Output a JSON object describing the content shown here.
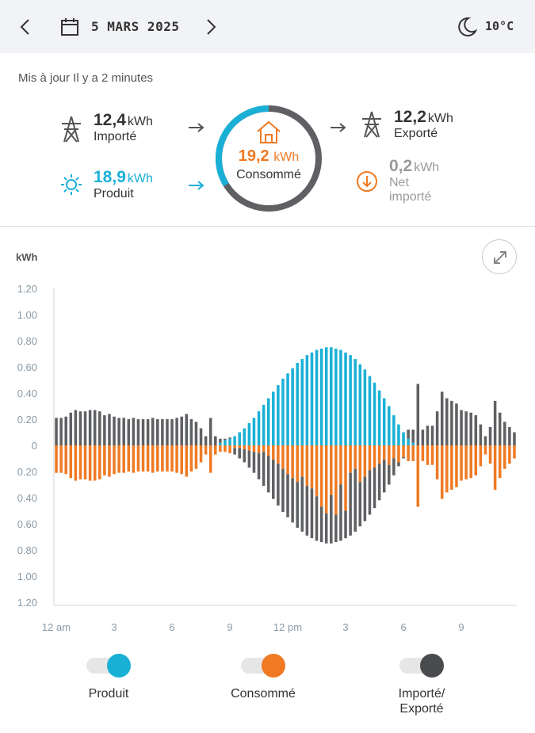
{
  "header": {
    "date": "5 MARS 2025",
    "temperature": "10°C"
  },
  "summary": {
    "updated": "Mis à jour Il y a 2 minutes",
    "imported": {
      "value": "12,4",
      "unit": "kWh",
      "label": "Importé"
    },
    "produced": {
      "value": "18,9",
      "unit": "kWh",
      "label": "Produit"
    },
    "consumed": {
      "value": "19,2",
      "unit": "kWh",
      "label": "Consommé"
    },
    "exported": {
      "value": "12,2",
      "unit": "kWh",
      "label": "Exporté"
    },
    "net": {
      "value": "0,2",
      "unit": "kWh",
      "label_line1": "Net",
      "label_line2": "importé"
    }
  },
  "colors": {
    "produced": "#1ab0d6",
    "consumed": "#ef7a23",
    "grid": "#5f6063",
    "ring_grey": "#5f6063",
    "ring_blue": "#1ab0d6"
  },
  "chart_data": {
    "type": "bar",
    "ylabel": "kWh",
    "y_ticks_top": [
      "1.20",
      "1.00",
      "0.80",
      "0.60",
      "0.40",
      "0.20",
      "0"
    ],
    "y_ticks_bottom": [
      "0.20",
      "0.40",
      "0.60",
      "0.80",
      "1.00",
      "1.20"
    ],
    "ylim": [
      -1.2,
      1.2
    ],
    "x_ticks": [
      "12 am",
      "3",
      "6",
      "9",
      "12 pm",
      "3",
      "6",
      "9"
    ],
    "series": [
      {
        "name": "Produit",
        "values": [
          0,
          0,
          0,
          0,
          0,
          0,
          0,
          0,
          0,
          0,
          0,
          0,
          0,
          0,
          0,
          0,
          0,
          0,
          0,
          0,
          0,
          0,
          0,
          0,
          0,
          0,
          0,
          0,
          0,
          0,
          0,
          0,
          0,
          0,
          0.02,
          0.04,
          0.05,
          0.07,
          0.1,
          0.13,
          0.17,
          0.21,
          0.26,
          0.31,
          0.36,
          0.41,
          0.46,
          0.51,
          0.55,
          0.59,
          0.63,
          0.66,
          0.69,
          0.71,
          0.73,
          0.74,
          0.75,
          0.75,
          0.74,
          0.73,
          0.71,
          0.69,
          0.66,
          0.62,
          0.58,
          0.53,
          0.48,
          0.42,
          0.36,
          0.3,
          0.23,
          0.16,
          0.1,
          0.05,
          0.02,
          0,
          0,
          0,
          0,
          0,
          0,
          0,
          0,
          0,
          0,
          0,
          0,
          0,
          0,
          0,
          0,
          0,
          0,
          0,
          0,
          0
        ]
      },
      {
        "name": "Consommé",
        "values": [
          0.21,
          0.21,
          0.22,
          0.25,
          0.27,
          0.26,
          0.26,
          0.27,
          0.27,
          0.26,
          0.23,
          0.24,
          0.22,
          0.21,
          0.21,
          0.2,
          0.21,
          0.2,
          0.2,
          0.2,
          0.21,
          0.2,
          0.2,
          0.2,
          0.2,
          0.21,
          0.22,
          0.24,
          0.2,
          0.18,
          0.13,
          0.07,
          0.21,
          0.07,
          0.05,
          0.05,
          0.06,
          0.02,
          0.02,
          0.03,
          0.04,
          0.05,
          0.06,
          0.05,
          0.08,
          0.11,
          0.14,
          0.18,
          0.22,
          0.25,
          0.28,
          0.24,
          0.31,
          0.33,
          0.39,
          0.47,
          0.52,
          0.38,
          0.53,
          0.3,
          0.5,
          0.21,
          0.18,
          0.28,
          0.24,
          0.19,
          0.17,
          0.14,
          0.11,
          0.15,
          0.1,
          0.13,
          0.09,
          0.12,
          0.12,
          0.47,
          0.12,
          0.15,
          0.15,
          0.26,
          0.41,
          0.36,
          0.34,
          0.32,
          0.27,
          0.26,
          0.25,
          0.23,
          0.16,
          0.07,
          0.14,
          0.34,
          0.25,
          0.18,
          0.14,
          0.1
        ]
      },
      {
        "name": "Importé/Exporté",
        "values": [
          0.21,
          0.21,
          0.22,
          0.25,
          0.27,
          0.26,
          0.26,
          0.27,
          0.27,
          0.26,
          0.23,
          0.24,
          0.22,
          0.21,
          0.21,
          0.2,
          0.21,
          0.2,
          0.2,
          0.2,
          0.21,
          0.2,
          0.2,
          0.2,
          0.2,
          0.21,
          0.22,
          0.24,
          0.2,
          0.18,
          0.13,
          0.07,
          0.21,
          0.07,
          0.03,
          0.01,
          0.01,
          -0.05,
          -0.08,
          -0.1,
          -0.13,
          -0.16,
          -0.2,
          -0.26,
          -0.28,
          -0.3,
          -0.32,
          -0.33,
          -0.33,
          -0.34,
          -0.35,
          -0.42,
          -0.38,
          -0.38,
          -0.34,
          -0.27,
          -0.23,
          -0.37,
          -0.21,
          -0.43,
          -0.21,
          -0.48,
          -0.48,
          -0.34,
          -0.34,
          -0.34,
          -0.31,
          -0.28,
          -0.25,
          -0.15,
          -0.13,
          -0.03,
          -0.01,
          0.07,
          0.1,
          0.47,
          0.12,
          0.15,
          0.15,
          0.26,
          0.41,
          0.36,
          0.34,
          0.32,
          0.27,
          0.26,
          0.25,
          0.23,
          0.16,
          0.07,
          0.14,
          0.34,
          0.25,
          0.18,
          0.14,
          0.1
        ]
      }
    ]
  },
  "legend": [
    {
      "label": "Produit",
      "color": "#1ab0d6"
    },
    {
      "label": "Consommé",
      "color": "#ef7a23"
    },
    {
      "label_line1": "Importé/",
      "label_line2": "Exporté",
      "color": "#5f6063"
    }
  ]
}
